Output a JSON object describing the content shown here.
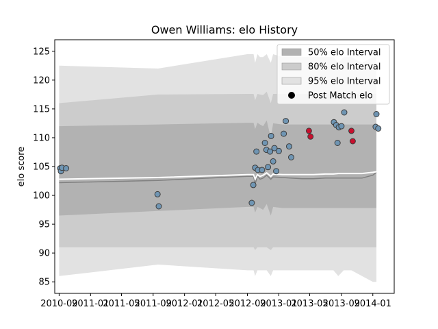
{
  "chart_data": {
    "type": "scatter",
    "title": "Owen Williams: elo History",
    "xlabel": "",
    "ylabel": "elo score",
    "xlim": [
      "2010-08-15",
      "2014-03-25"
    ],
    "ylim": [
      83,
      127
    ],
    "x_ticks": [
      "2010-09",
      "2011-01",
      "2011-05",
      "2011-09",
      "2012-01",
      "2012-05",
      "2012-09",
      "2013-01",
      "2013-05",
      "2013-09",
      "2014-01"
    ],
    "y_ticks": [
      85,
      90,
      95,
      100,
      105,
      110,
      115,
      120,
      125
    ],
    "grid": false,
    "legend": {
      "position": "top-right",
      "entries": [
        "50% elo Interval",
        "80% elo Interval",
        "95% elo Interval",
        "Post Match elo"
      ]
    },
    "band_dates": [
      "2010-09-01",
      "2011-09-20",
      "2012-09-01",
      "2012-09-25",
      "2012-10-01",
      "2012-10-10",
      "2012-10-20",
      "2012-11-01",
      "2012-11-15",
      "2012-12-01",
      "2012-12-10",
      "2013-01-15",
      "2013-02-15",
      "2013-04-01",
      "2013-05-15",
      "2013-07-01",
      "2013-08-01",
      "2013-08-20",
      "2013-09-10",
      "2013-10-10",
      "2013-11-20",
      "2014-01-01",
      "2014-01-15"
    ],
    "series": [
      {
        "name": "50% elo Interval",
        "lower": [
          96.5,
          97.3,
          98.0,
          98.0,
          97.0,
          98.0,
          97.8,
          97.5,
          98.5,
          96.5,
          98.0,
          97.8,
          97.8,
          97.8,
          97.8,
          97.8,
          97.8,
          97.8,
          97.8,
          97.8,
          97.8,
          97.8,
          97.8
        ],
        "upper": [
          112.0,
          112.3,
          112.6,
          112.6,
          111.5,
          112.6,
          112.3,
          112.0,
          113.0,
          110.0,
          112.5,
          112.3,
          112.3,
          112.3,
          112.3,
          112.3,
          112.3,
          112.3,
          112.3,
          112.3,
          112.3,
          112.3,
          112.3
        ],
        "color": "#b2b2b2"
      },
      {
        "name": "80% elo Interval",
        "lower": [
          91.0,
          91.0,
          91.0,
          91.0,
          90.5,
          91.0,
          91.0,
          91.0,
          91.0,
          90.5,
          91.0,
          91.0,
          91.0,
          91.0,
          91.0,
          91.0,
          91.0,
          91.0,
          91.0,
          91.0,
          91.0,
          91.0,
          91.0
        ],
        "upper": [
          116.0,
          117.5,
          117.6,
          117.6,
          116.5,
          117.6,
          117.5,
          117.4,
          118.0,
          116.0,
          117.6,
          117.6,
          117.6,
          117.6,
          117.6,
          117.6,
          117.6,
          117.6,
          117.6,
          117.6,
          117.6,
          117.6,
          117.6
        ],
        "color": "#cccccc"
      },
      {
        "name": "95% elo Interval",
        "lower": [
          86.0,
          88.0,
          87.0,
          87.0,
          86.0,
          87.0,
          87.0,
          87.0,
          87.0,
          86.0,
          87.0,
          87.0,
          87.0,
          87.0,
          87.0,
          87.0,
          87.0,
          86.0,
          87.0,
          87.0,
          86.0,
          85.0,
          85.0
        ],
        "upper": [
          122.5,
          122.0,
          124.5,
          124.5,
          123.0,
          124.5,
          124.0,
          124.0,
          124.5,
          123.0,
          124.5,
          124.0,
          124.0,
          124.0,
          124.0,
          124.0,
          124.0,
          123.0,
          124.0,
          124.0,
          123.0,
          124.0,
          124.0
        ],
        "color": "#e2e2e2"
      },
      {
        "name": "median",
        "values": [
          102.2,
          102.6,
          103.3,
          103.3,
          102.0,
          103.3,
          102.8,
          103.0,
          103.5,
          102.8,
          103.2,
          103.1,
          103.0,
          102.9,
          102.9,
          103.0,
          103.0,
          103.0,
          103.0,
          103.0,
          103.0,
          103.5,
          104.0
        ],
        "color": "#808080"
      },
      {
        "name": "mean",
        "values": [
          102.8,
          103.1,
          103.6,
          103.6,
          102.8,
          103.6,
          103.3,
          103.5,
          103.9,
          103.3,
          103.7,
          103.6,
          103.6,
          103.6,
          103.6,
          103.7,
          103.7,
          103.8,
          103.8,
          103.8,
          103.8,
          104.0,
          104.1
        ],
        "color": "#ffffff"
      }
    ],
    "points": [
      {
        "x": "2010-09-05",
        "y": 104.7,
        "color": "#6f95b3"
      },
      {
        "x": "2010-09-08",
        "y": 104.2,
        "color": "#6f95b3"
      },
      {
        "x": "2010-09-12",
        "y": 104.8,
        "color": "#6f95b3"
      },
      {
        "x": "2010-09-28",
        "y": 104.7,
        "color": "#6f95b3"
      },
      {
        "x": "2011-09-18",
        "y": 100.2,
        "color": "#6f95b3"
      },
      {
        "x": "2011-09-23",
        "y": 98.1,
        "color": "#6f95b3"
      },
      {
        "x": "2012-09-18",
        "y": 98.7,
        "color": "#6f95b3"
      },
      {
        "x": "2012-09-24",
        "y": 101.8,
        "color": "#6f95b3"
      },
      {
        "x": "2012-10-01",
        "y": 104.8,
        "color": "#6f95b3"
      },
      {
        "x": "2012-10-06",
        "y": 107.6,
        "color": "#6f95b3"
      },
      {
        "x": "2012-10-12",
        "y": 104.4,
        "color": "#6f95b3"
      },
      {
        "x": "2012-10-28",
        "y": 104.4,
        "color": "#6f95b3"
      },
      {
        "x": "2012-11-08",
        "y": 109.1,
        "color": "#6f95b3"
      },
      {
        "x": "2012-11-14",
        "y": 107.9,
        "color": "#6f95b3"
      },
      {
        "x": "2012-11-20",
        "y": 104.9,
        "color": "#6f95b3"
      },
      {
        "x": "2012-11-28",
        "y": 107.6,
        "color": "#6f95b3"
      },
      {
        "x": "2012-12-02",
        "y": 110.3,
        "color": "#6f95b3"
      },
      {
        "x": "2012-12-10",
        "y": 105.9,
        "color": "#6f95b3"
      },
      {
        "x": "2012-12-15",
        "y": 108.2,
        "color": "#6f95b3"
      },
      {
        "x": "2012-12-22",
        "y": 104.2,
        "color": "#6f95b3"
      },
      {
        "x": "2013-01-01",
        "y": 107.7,
        "color": "#6f95b3"
      },
      {
        "x": "2013-01-20",
        "y": 110.7,
        "color": "#6f95b3"
      },
      {
        "x": "2013-01-28",
        "y": 112.9,
        "color": "#6f95b3"
      },
      {
        "x": "2013-02-10",
        "y": 108.5,
        "color": "#6f95b3"
      },
      {
        "x": "2013-02-18",
        "y": 106.6,
        "color": "#6f95b3"
      },
      {
        "x": "2013-04-28",
        "y": 111.2,
        "color": "#c8102e"
      },
      {
        "x": "2013-05-04",
        "y": 110.2,
        "color": "#c8102e"
      },
      {
        "x": "2013-08-03",
        "y": 112.7,
        "color": "#6f95b3"
      },
      {
        "x": "2013-08-12",
        "y": 112.2,
        "color": "#6f95b3"
      },
      {
        "x": "2013-08-17",
        "y": 109.1,
        "color": "#6f95b3"
      },
      {
        "x": "2013-08-22",
        "y": 111.8,
        "color": "#6f95b3"
      },
      {
        "x": "2013-09-01",
        "y": 112.0,
        "color": "#6f95b3"
      },
      {
        "x": "2013-09-12",
        "y": 114.4,
        "color": "#6f95b3"
      },
      {
        "x": "2013-10-10",
        "y": 111.2,
        "color": "#c8102e"
      },
      {
        "x": "2013-10-15",
        "y": 109.4,
        "color": "#c8102e"
      },
      {
        "x": "2014-01-12",
        "y": 111.9,
        "color": "#6f95b3"
      },
      {
        "x": "2014-01-15",
        "y": 114.1,
        "color": "#6f95b3"
      },
      {
        "x": "2014-01-22",
        "y": 111.6,
        "color": "#6f95b3"
      }
    ]
  }
}
